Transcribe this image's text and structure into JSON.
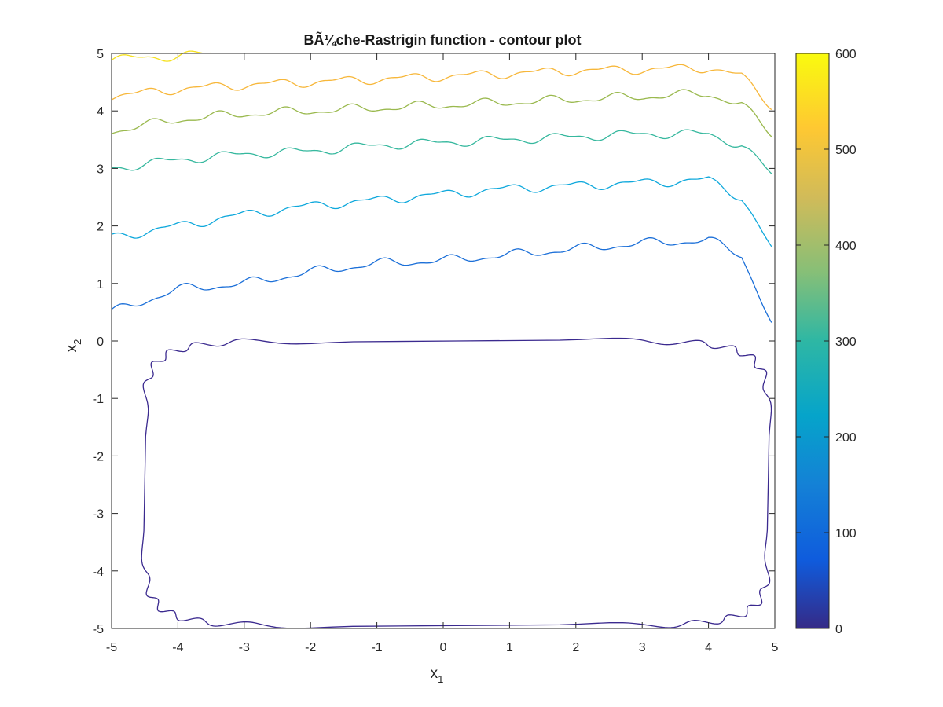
{
  "chart_data": {
    "type": "contour",
    "title": "BÃ¼che-Rastrigin function - contour plot",
    "xlabel": {
      "base": "x",
      "sub": "1"
    },
    "ylabel": {
      "base": "x",
      "sub": "2"
    },
    "xlim": [
      -5,
      5
    ],
    "ylim": [
      -5,
      5
    ],
    "xticks": [
      -5,
      -4,
      -3,
      -2,
      -1,
      0,
      1,
      2,
      3,
      4,
      5
    ],
    "yticks": [
      -5,
      -4,
      -3,
      -2,
      -1,
      0,
      1,
      2,
      3,
      4,
      5
    ],
    "grid": false,
    "colormap": "parula",
    "colorbar": {
      "range": [
        0,
        600
      ],
      "ticks": [
        0,
        100,
        200,
        300,
        400,
        500,
        600
      ],
      "placement": "right"
    },
    "levels": [
      {
        "value": 50,
        "color": "#3b2a8f",
        "shape": "closed-ring",
        "bounds": {
          "x": [
            -4.5,
            4.9
          ],
          "y": [
            -4.95,
            0.0
          ]
        }
      },
      {
        "value": 150,
        "color": "#1b6fd8",
        "shape": "open-curve",
        "points": [
          [
            -5,
            0.5
          ],
          [
            -4,
            0.9
          ],
          [
            -3,
            1.0
          ],
          [
            -2,
            1.2
          ],
          [
            -1,
            1.35
          ],
          [
            0,
            1.4
          ],
          [
            1,
            1.5
          ],
          [
            2,
            1.6
          ],
          [
            3,
            1.7
          ],
          [
            4,
            1.75
          ],
          [
            4.5,
            1.5
          ],
          [
            4.95,
            0.3
          ]
        ]
      },
      {
        "value": 250,
        "color": "#0ea8dc",
        "shape": "open-curve",
        "points": [
          [
            -5,
            1.8
          ],
          [
            -4,
            2.0
          ],
          [
            -3,
            2.2
          ],
          [
            -2,
            2.35
          ],
          [
            -1,
            2.45
          ],
          [
            0,
            2.55
          ],
          [
            1,
            2.65
          ],
          [
            2,
            2.7
          ],
          [
            3,
            2.75
          ],
          [
            4,
            2.8
          ],
          [
            4.5,
            2.5
          ],
          [
            4.95,
            1.6
          ]
        ]
      },
      {
        "value": 350,
        "color": "#36b89e",
        "shape": "open-curve",
        "points": [
          [
            -5,
            3.0
          ],
          [
            -4,
            3.15
          ],
          [
            -3,
            3.25
          ],
          [
            -2,
            3.3
          ],
          [
            -1,
            3.4
          ],
          [
            0,
            3.45
          ],
          [
            1,
            3.5
          ],
          [
            2,
            3.55
          ],
          [
            3,
            3.6
          ],
          [
            4,
            3.6
          ],
          [
            4.5,
            3.4
          ],
          [
            4.95,
            2.9
          ]
        ]
      },
      {
        "value": 450,
        "color": "#9ab94e",
        "shape": "open-curve",
        "points": [
          [
            -5,
            3.65
          ],
          [
            -4,
            3.85
          ],
          [
            -3,
            3.95
          ],
          [
            -2,
            4.0
          ],
          [
            -1,
            4.05
          ],
          [
            0,
            4.1
          ],
          [
            1,
            4.15
          ],
          [
            2,
            4.2
          ],
          [
            3,
            4.25
          ],
          [
            4,
            4.3
          ],
          [
            4.5,
            4.1
          ],
          [
            4.95,
            3.6
          ]
        ]
      },
      {
        "value": 550,
        "color": "#f7b73a",
        "shape": "open-curve",
        "points": [
          [
            -5,
            4.25
          ],
          [
            -4,
            4.38
          ],
          [
            -3,
            4.45
          ],
          [
            -2,
            4.5
          ],
          [
            -1,
            4.55
          ],
          [
            0,
            4.6
          ],
          [
            1,
            4.65
          ],
          [
            2,
            4.7
          ],
          [
            3,
            4.72
          ],
          [
            4,
            4.75
          ],
          [
            4.5,
            4.6
          ],
          [
            4.95,
            4.1
          ]
        ]
      },
      {
        "value": 600,
        "color": "#f5e120",
        "shape": "open-curve",
        "points": [
          [
            -5,
            4.9
          ],
          [
            -4.5,
            4.92
          ],
          [
            -4,
            4.96
          ],
          [
            -3.5,
            4.99
          ]
        ]
      }
    ]
  }
}
